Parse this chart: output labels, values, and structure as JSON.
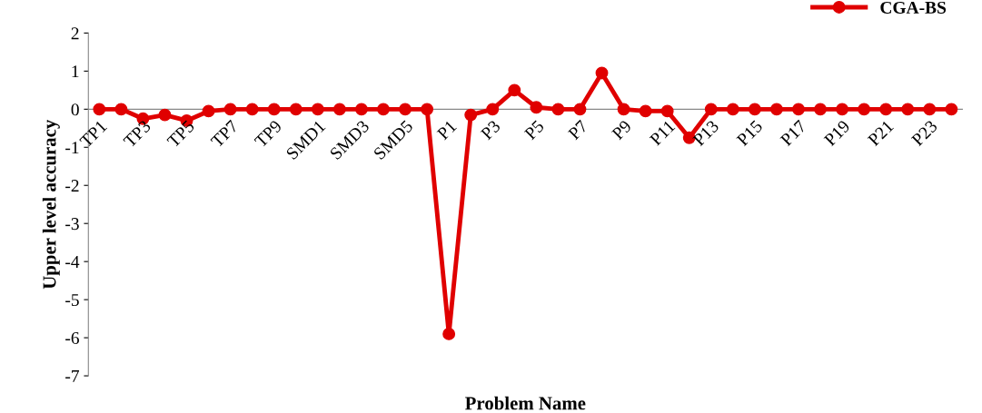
{
  "chart_data": {
    "type": "line",
    "xlabel": "Problem Name",
    "ylabel": "Upper level accuracy",
    "categories": [
      "TP1",
      null,
      "TP3",
      null,
      "TP5",
      null,
      "TP7",
      null,
      "TP9",
      null,
      "SMD1",
      null,
      "SMD3",
      null,
      "SMD5",
      null,
      "P1",
      null,
      "P3",
      null,
      "P5",
      null,
      "P7",
      null,
      "P9",
      null,
      "P11",
      null,
      "P13",
      null,
      "P15",
      null,
      "P17",
      null,
      "P19",
      null,
      "P21",
      null,
      "P23",
      null
    ],
    "series": [
      {
        "name": "CGA-BS",
        "color": "#e00000",
        "values": [
          0,
          0,
          -0.25,
          -0.15,
          -0.3,
          -0.05,
          0,
          0,
          0,
          0,
          0,
          0,
          0,
          0,
          0,
          0,
          -5.9,
          -0.15,
          0,
          0.5,
          0.05,
          0,
          0,
          0.95,
          0,
          -0.05,
          -0.05,
          -0.75,
          0,
          0,
          0,
          0,
          0,
          0,
          0,
          0,
          0,
          0,
          0,
          0
        ]
      }
    ],
    "ylim": [
      -7,
      2
    ],
    "yticks": [
      -7,
      -6,
      -5,
      -4,
      -3,
      -2,
      -1,
      0,
      1,
      2
    ],
    "marker": "circle",
    "line_style": "solid",
    "legend": "top right",
    "grid": false
  }
}
